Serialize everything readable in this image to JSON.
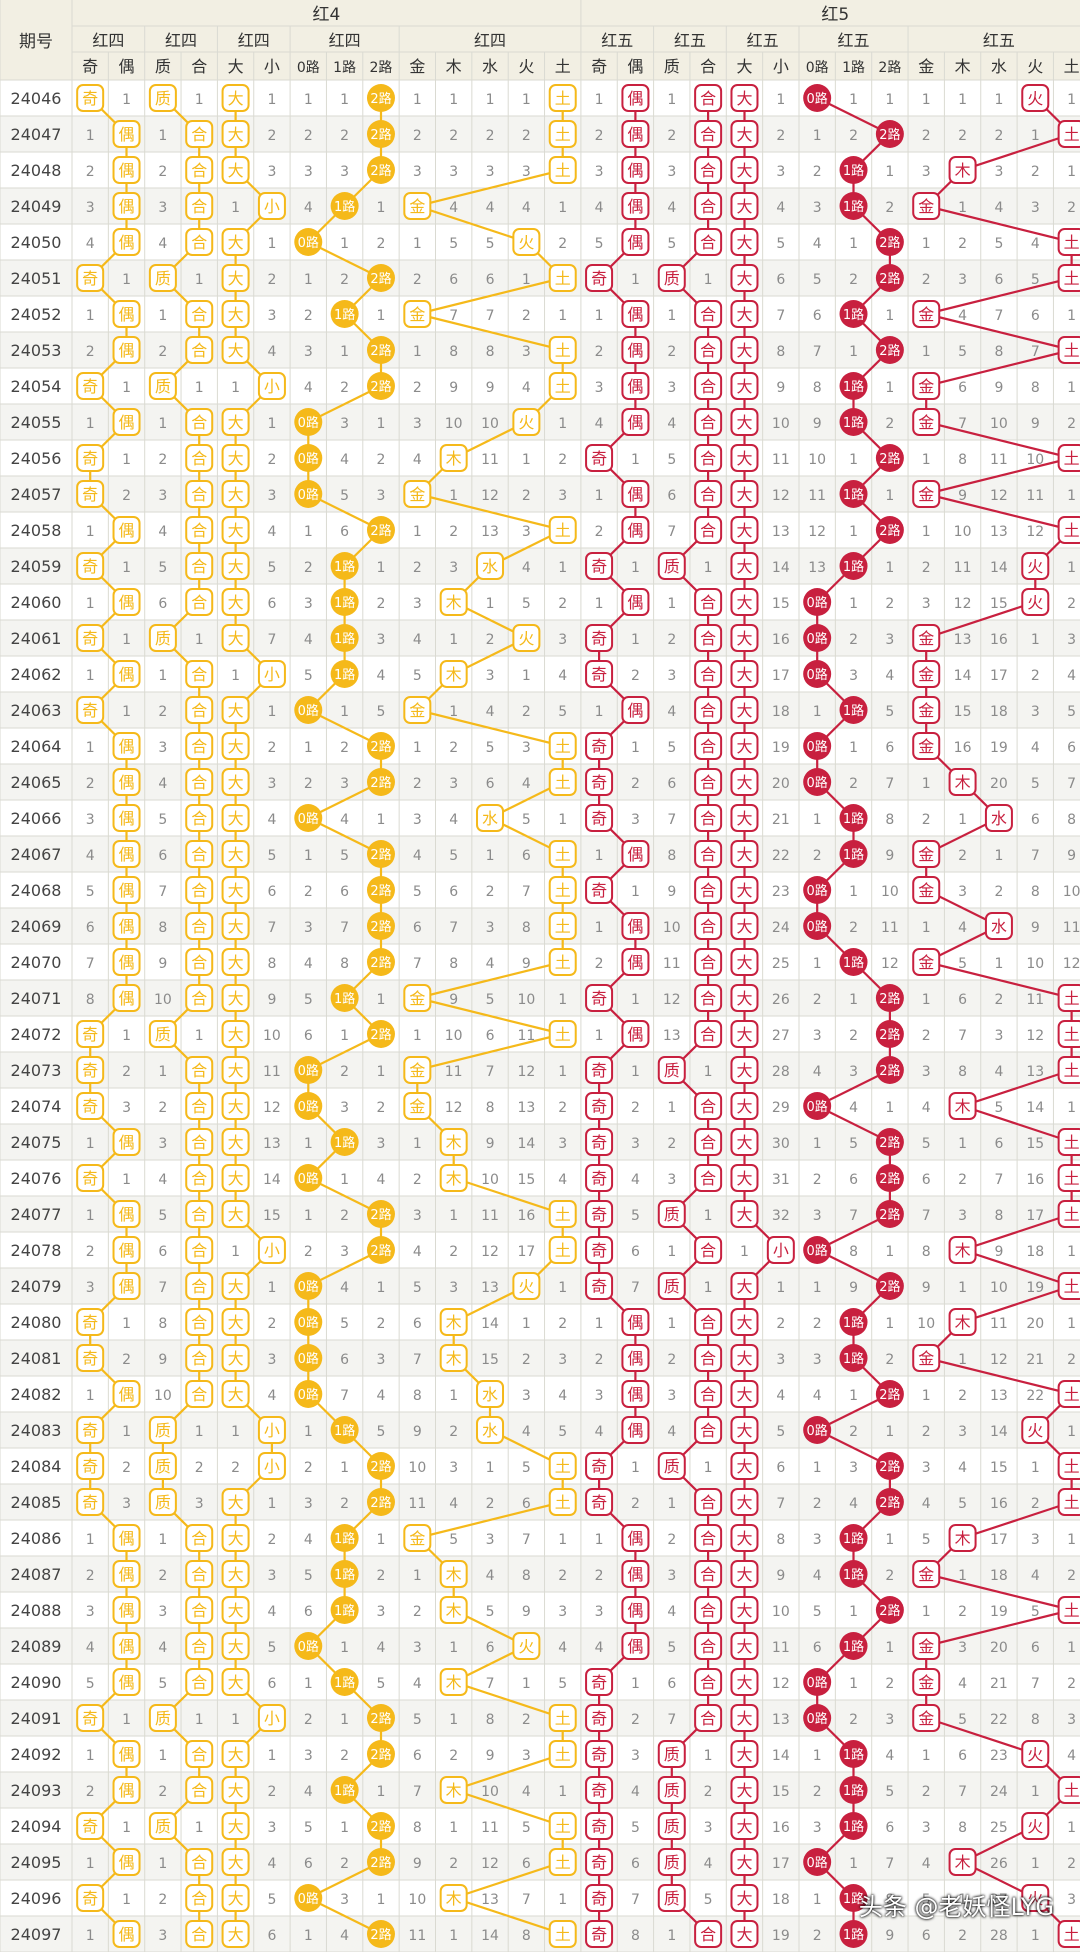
{
  "header": {
    "period_label": "期号",
    "group_labels": [
      "红4",
      "红5"
    ],
    "section_labels": [
      "红四",
      "红四",
      "红四",
      "红四",
      "红四",
      "红五",
      "红五",
      "红五",
      "红五",
      "红五"
    ],
    "sub_labels": [
      "奇",
      "偶",
      "质",
      "合",
      "大",
      "小",
      "0路",
      "1路",
      "2路",
      "金",
      "木",
      "水",
      "火",
      "土",
      "奇",
      "偶",
      "质",
      "合",
      "大",
      "小",
      "0路",
      "1路",
      "2路",
      "金",
      "木",
      "水",
      "火",
      "土"
    ]
  },
  "colors": {
    "gold": "#f5b91a",
    "red": "#c8203f",
    "header_bg": "#f2efe3",
    "row_alt": "#f4f4f1",
    "grid": "#dadad2",
    "digit": "#8b8b8b"
  },
  "chart_data": {
    "type": "table",
    "title": "",
    "periods": [
      24046,
      24047,
      24048,
      24049,
      24050,
      24051,
      24052,
      24053,
      24054,
      24055,
      24056,
      24057,
      24058,
      24059,
      24060,
      24061,
      24062,
      24063,
      24064,
      24065,
      24066,
      24067,
      24068,
      24069,
      24070,
      24071,
      24072,
      24073,
      24074,
      24075,
      24076,
      24077,
      24078,
      24079,
      24080,
      24081,
      24082,
      24083,
      24084,
      24085,
      24086,
      24087,
      24088,
      24089,
      24090,
      24091,
      24092,
      24093,
      24094,
      24095,
      24096,
      24097
    ],
    "red4": {
      "parity": [
        "奇",
        "偶",
        "偶",
        "偶",
        "偶",
        "奇",
        "偶",
        "偶",
        "奇",
        "偶",
        "奇",
        "奇",
        "偶",
        "奇",
        "偶",
        "奇",
        "偶",
        "奇",
        "偶",
        "偶",
        "偶",
        "偶",
        "偶",
        "偶",
        "偶",
        "偶",
        "奇",
        "奇",
        "奇",
        "偶",
        "奇",
        "偶",
        "偶",
        "偶",
        "奇",
        "奇",
        "偶",
        "奇",
        "奇",
        "奇",
        "偶",
        "偶",
        "偶",
        "偶",
        "偶",
        "奇",
        "偶",
        "偶",
        "奇",
        "偶",
        "奇",
        "偶"
      ],
      "prime": [
        "质",
        "合",
        "合",
        "合",
        "合",
        "质",
        "合",
        "合",
        "质",
        "合",
        "合",
        "合",
        "合",
        "合",
        "合",
        "质",
        "合",
        "合",
        "合",
        "合",
        "合",
        "合",
        "合",
        "合",
        "合",
        "合",
        "质",
        "合",
        "合",
        "合",
        "合",
        "合",
        "合",
        "合",
        "合",
        "合",
        "合",
        "质",
        "质",
        "质",
        "合",
        "合",
        "合",
        "合",
        "合",
        "质",
        "合",
        "合",
        "质",
        "合",
        "合",
        "合"
      ],
      "size": [
        "大",
        "大",
        "大",
        "小",
        "大",
        "大",
        "大",
        "大",
        "小",
        "大",
        "大",
        "大",
        "大",
        "大",
        "大",
        "大",
        "小",
        "大",
        "大",
        "大",
        "大",
        "大",
        "大",
        "大",
        "大",
        "大",
        "大",
        "大",
        "大",
        "大",
        "大",
        "大",
        "小",
        "大",
        "大",
        "大",
        "大",
        "小",
        "小",
        "大",
        "大",
        "大",
        "大",
        "大",
        "大",
        "小",
        "大",
        "大",
        "大",
        "大",
        "大",
        "大"
      ],
      "road": [
        "2路",
        "2路",
        "2路",
        "1路",
        "0路",
        "2路",
        "1路",
        "2路",
        "2路",
        "0路",
        "0路",
        "0路",
        "2路",
        "1路",
        "1路",
        "1路",
        "1路",
        "0路",
        "2路",
        "2路",
        "0路",
        "2路",
        "2路",
        "2路",
        "2路",
        "1路",
        "2路",
        "0路",
        "0路",
        "1路",
        "0路",
        "2路",
        "2路",
        "0路",
        "0路",
        "0路",
        "0路",
        "1路",
        "2路",
        "2路",
        "1路",
        "1路",
        "1路",
        "0路",
        "1路",
        "2路",
        "2路",
        "1路",
        "2路",
        "2路",
        "0路",
        "2路"
      ],
      "element": [
        "土",
        "土",
        "土",
        "金",
        "火",
        "土",
        "金",
        "土",
        "土",
        "火",
        "木",
        "金",
        "土",
        "水",
        "木",
        "火",
        "木",
        "金",
        "土",
        "土",
        "水",
        "土",
        "土",
        "土",
        "土",
        "金",
        "土",
        "金",
        "金",
        "木",
        "木",
        "土",
        "土",
        "火",
        "木",
        "木",
        "水",
        "水",
        "土",
        "土",
        "金",
        "木",
        "木",
        "火",
        "木",
        "土",
        "土",
        "木",
        "土",
        "土",
        "木",
        "土"
      ]
    },
    "red5": {
      "parity": [
        "偶",
        "偶",
        "偶",
        "偶",
        "偶",
        "奇",
        "偶",
        "偶",
        "偶",
        "偶",
        "奇",
        "偶",
        "偶",
        "奇",
        "偶",
        "奇",
        "奇",
        "偶",
        "奇",
        "奇",
        "奇",
        "偶",
        "奇",
        "偶",
        "偶",
        "奇",
        "偶",
        "奇",
        "奇",
        "奇",
        "奇",
        "奇",
        "奇",
        "奇",
        "偶",
        "偶",
        "偶",
        "偶",
        "奇",
        "奇",
        "偶",
        "偶",
        "偶",
        "偶",
        "奇",
        "奇",
        "奇",
        "奇",
        "奇",
        "奇",
        "奇",
        "奇"
      ],
      "prime": [
        "合",
        "合",
        "合",
        "合",
        "合",
        "质",
        "合",
        "合",
        "合",
        "合",
        "合",
        "合",
        "合",
        "质",
        "合",
        "合",
        "合",
        "合",
        "合",
        "合",
        "合",
        "合",
        "合",
        "合",
        "合",
        "合",
        "合",
        "质",
        "合",
        "合",
        "合",
        "质",
        "合",
        "质",
        "合",
        "合",
        "合",
        "合",
        "质",
        "合",
        "合",
        "合",
        "合",
        "合",
        "合",
        "合",
        "质",
        "质",
        "质",
        "质",
        "质",
        "合"
      ],
      "size": [
        "大",
        "大",
        "大",
        "大",
        "大",
        "大",
        "大",
        "大",
        "大",
        "大",
        "大",
        "大",
        "大",
        "大",
        "大",
        "大",
        "大",
        "大",
        "大",
        "大",
        "大",
        "大",
        "大",
        "大",
        "大",
        "大",
        "大",
        "大",
        "大",
        "大",
        "大",
        "大",
        "小",
        "大",
        "大",
        "大",
        "大",
        "大",
        "大",
        "大",
        "大",
        "大",
        "大",
        "大",
        "大",
        "大",
        "大",
        "大",
        "大",
        "大",
        "大",
        "大"
      ],
      "road": [
        "0路",
        "2路",
        "1路",
        "1路",
        "2路",
        "2路",
        "1路",
        "2路",
        "1路",
        "1路",
        "2路",
        "1路",
        "2路",
        "1路",
        "0路",
        "0路",
        "0路",
        "1路",
        "0路",
        "0路",
        "1路",
        "1路",
        "0路",
        "0路",
        "1路",
        "2路",
        "2路",
        "2路",
        "0路",
        "2路",
        "2路",
        "2路",
        "0路",
        "2路",
        "1路",
        "1路",
        "2路",
        "0路",
        "2路",
        "2路",
        "1路",
        "1路",
        "2路",
        "1路",
        "0路",
        "0路",
        "1路",
        "1路",
        "1路",
        "0路",
        "1路",
        "1路"
      ],
      "element": [
        "火",
        "土",
        "木",
        "金",
        "土",
        "土",
        "金",
        "土",
        "金",
        "金",
        "土",
        "金",
        "土",
        "火",
        "火",
        "金",
        "金",
        "金",
        "金",
        "木",
        "水",
        "金",
        "金",
        "水",
        "金",
        "土",
        "土",
        "土",
        "木",
        "土",
        "土",
        "土",
        "木",
        "土",
        "木",
        "金",
        "土",
        "火",
        "土",
        "土",
        "木",
        "金",
        "土",
        "金",
        "金",
        "金",
        "火",
        "土",
        "火",
        "木",
        "火",
        "土"
      ]
    }
  },
  "watermark": "头条 @老妖怪LYG"
}
